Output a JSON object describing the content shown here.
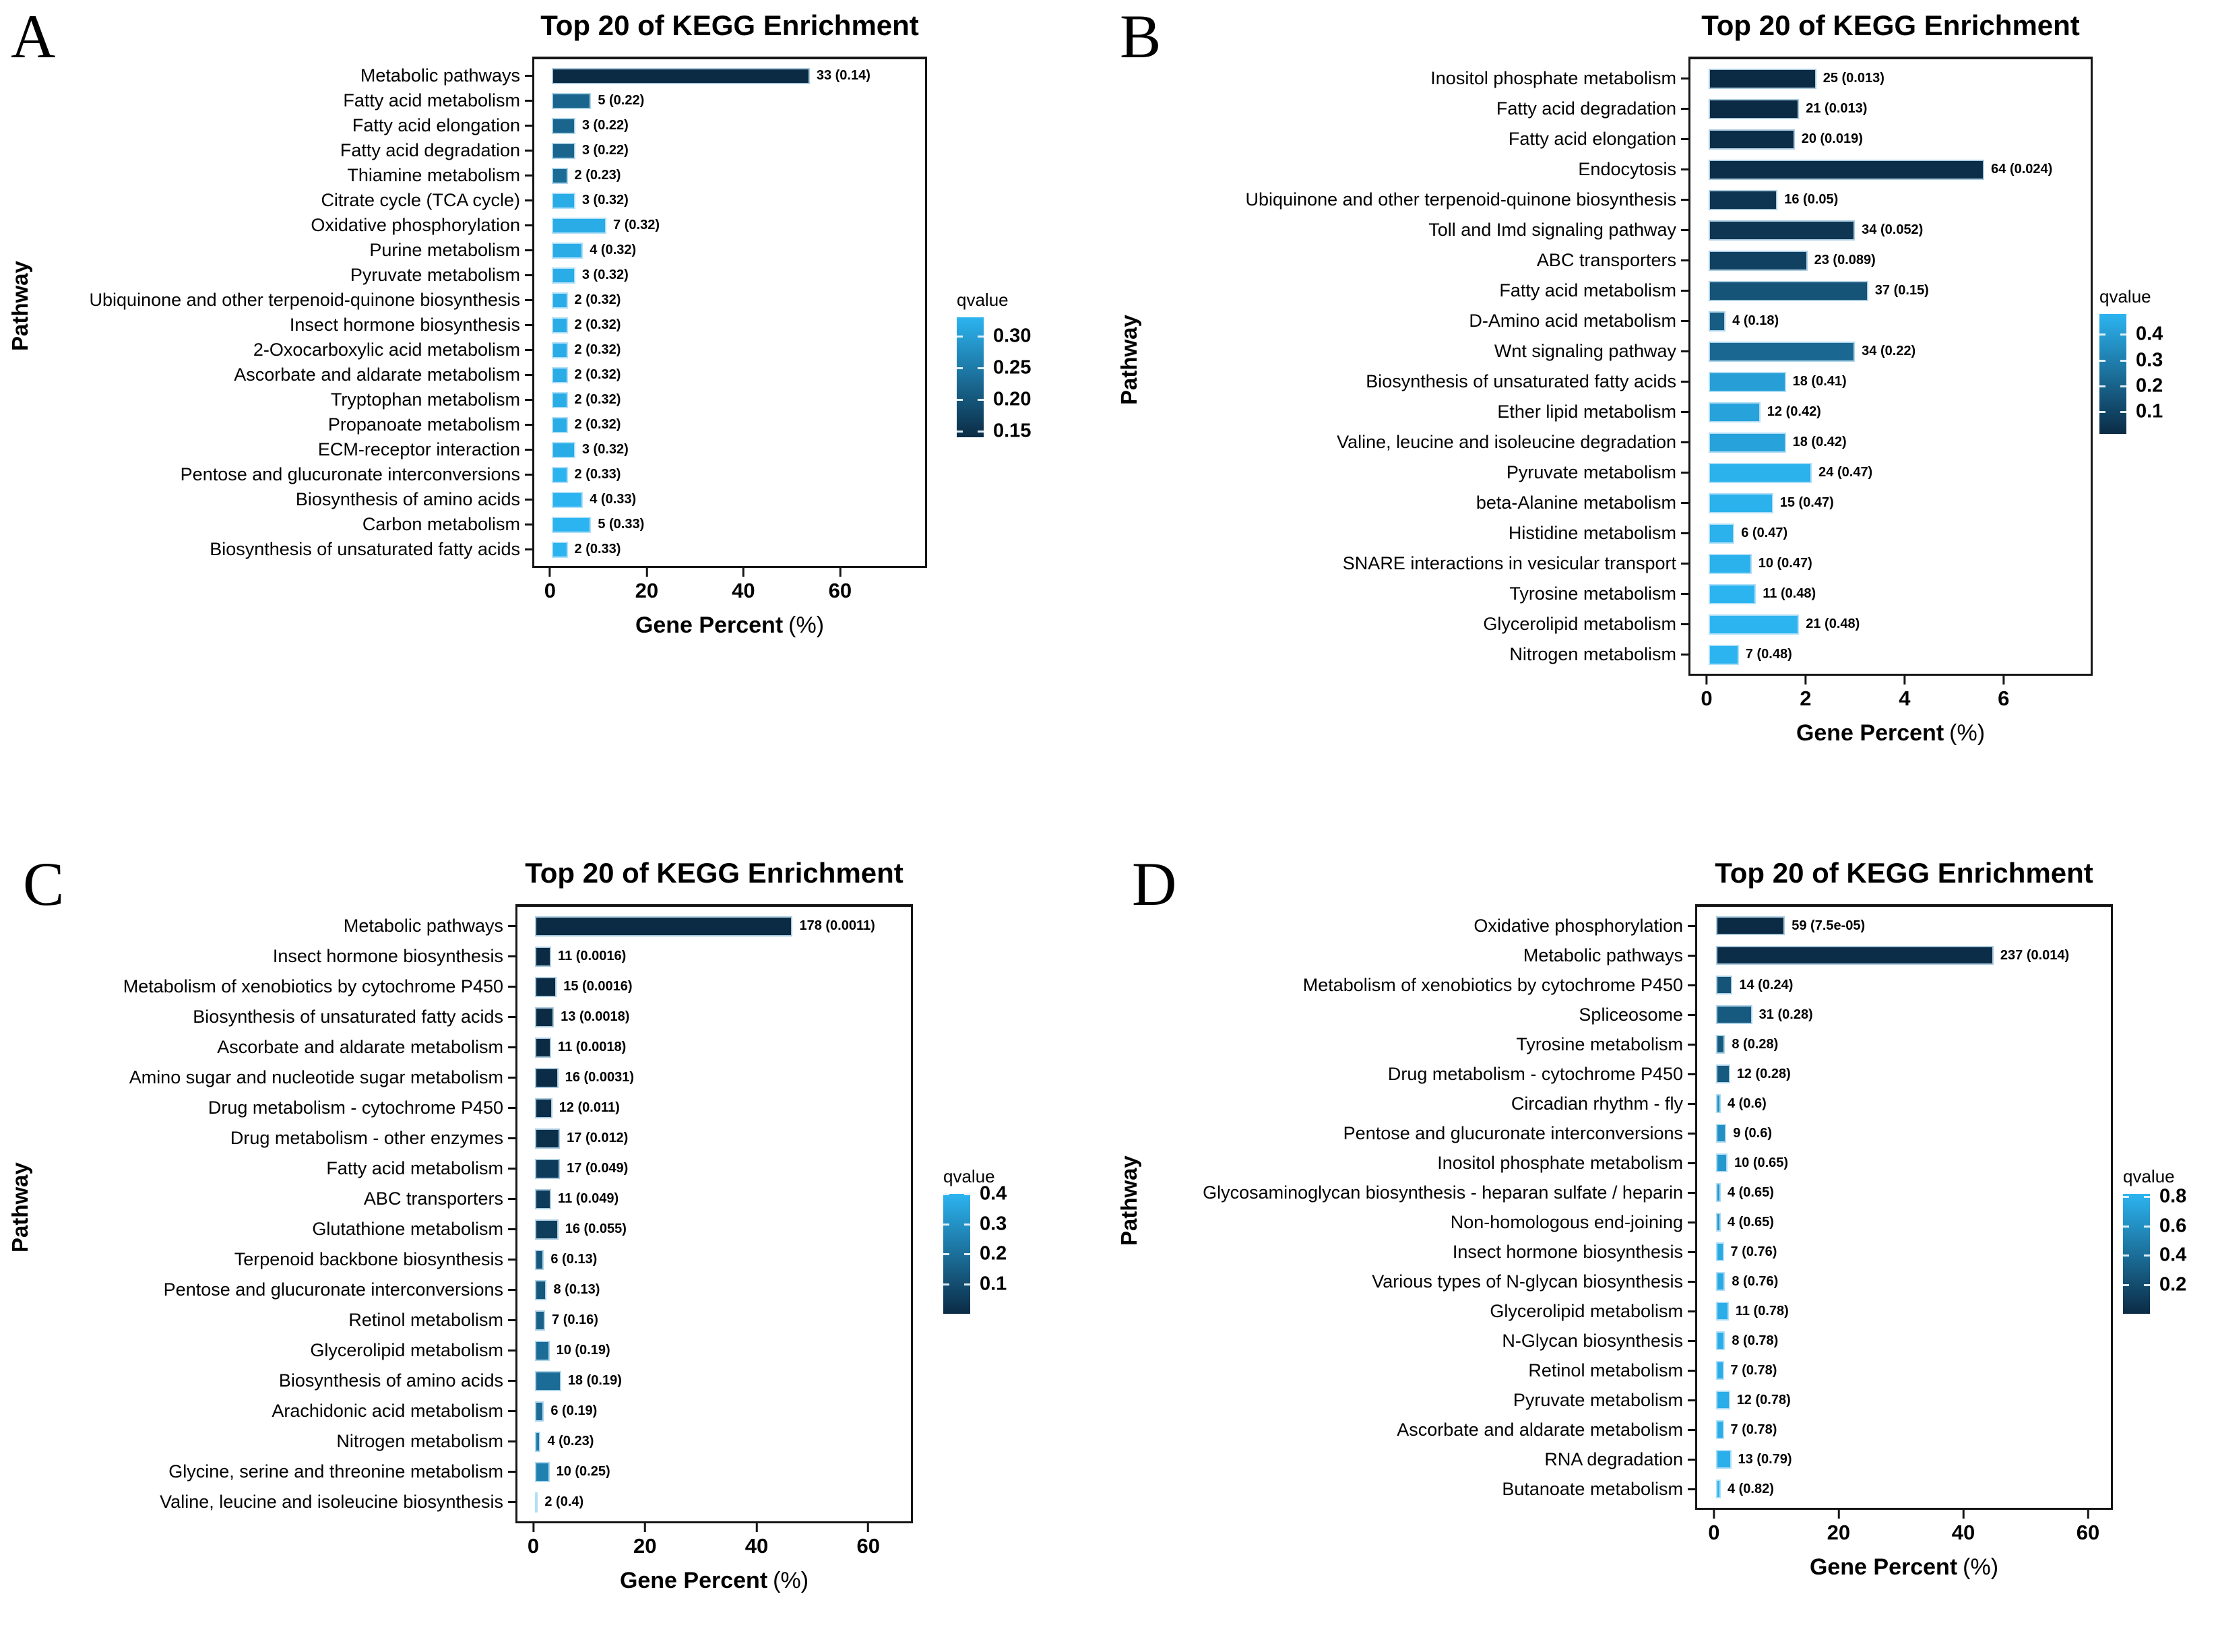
{
  "figure_background": "#ffffff",
  "colors": {
    "qvalue_low": "#0B2B45",
    "qvalue_high": "#2CB4F0",
    "qvalue_low_rgb": [
      11,
      43,
      69
    ],
    "qvalue_high_rgb": [
      44,
      180,
      240
    ],
    "bar_border": "#C8E7FA",
    "axis_line": "#161616"
  },
  "chart_data": [
    {
      "type": "bar",
      "panel": "A",
      "title": "Top 20 of KEGG Enrichment",
      "ylabel": "Pathway",
      "xlabel_main": "Gene Percent",
      "xlabel_unit": "(%)",
      "legend_title": "qvalue",
      "legend_position": "right",
      "grid": false,
      "xticks": [
        0,
        20,
        40,
        60
      ],
      "xmax": 78,
      "qmin": 0.14,
      "qmax": 0.33,
      "legend_ticks": [
        {
          "label": "0.30",
          "value": 0.3
        },
        {
          "label": "0.25",
          "value": 0.25
        },
        {
          "label": "0.20",
          "value": 0.2
        },
        {
          "label": "0.15",
          "value": 0.15
        }
      ],
      "rows": [
        {
          "pathway": "Metabolic pathways",
          "genes": 33,
          "qvalue": 0.14,
          "qtext": "0.14",
          "percent": 53.9
        },
        {
          "pathway": "Fatty acid metabolism",
          "genes": 5,
          "qvalue": 0.22,
          "qtext": "0.22",
          "percent": 8.2
        },
        {
          "pathway": "Fatty acid elongation",
          "genes": 3,
          "qvalue": 0.22,
          "qtext": "0.22",
          "percent": 4.9
        },
        {
          "pathway": "Fatty acid degradation",
          "genes": 3,
          "qvalue": 0.22,
          "qtext": "0.22",
          "percent": 4.9
        },
        {
          "pathway": "Thiamine metabolism",
          "genes": 2,
          "qvalue": 0.23,
          "qtext": "0.23",
          "percent": 3.3
        },
        {
          "pathway": "Citrate cycle (TCA cycle)",
          "genes": 3,
          "qvalue": 0.32,
          "qtext": "0.32",
          "percent": 4.9
        },
        {
          "pathway": "Oxidative phosphorylation",
          "genes": 7,
          "qvalue": 0.32,
          "qtext": "0.32",
          "percent": 11.4
        },
        {
          "pathway": "Purine metabolism",
          "genes": 4,
          "qvalue": 0.32,
          "qtext": "0.32",
          "percent": 6.5
        },
        {
          "pathway": "Pyruvate metabolism",
          "genes": 3,
          "qvalue": 0.32,
          "qtext": "0.32",
          "percent": 4.9
        },
        {
          "pathway": "Ubiquinone and other terpenoid-quinone biosynthesis",
          "genes": 2,
          "qvalue": 0.32,
          "qtext": "0.32",
          "percent": 3.3
        },
        {
          "pathway": "Insect hormone biosynthesis",
          "genes": 2,
          "qvalue": 0.32,
          "qtext": "0.32",
          "percent": 3.3
        },
        {
          "pathway": "2-Oxocarboxylic acid metabolism",
          "genes": 2,
          "qvalue": 0.32,
          "qtext": "0.32",
          "percent": 3.3
        },
        {
          "pathway": "Ascorbate and aldarate metabolism",
          "genes": 2,
          "qvalue": 0.32,
          "qtext": "0.32",
          "percent": 3.3
        },
        {
          "pathway": "Tryptophan metabolism",
          "genes": 2,
          "qvalue": 0.32,
          "qtext": "0.32",
          "percent": 3.3
        },
        {
          "pathway": "Propanoate metabolism",
          "genes": 2,
          "qvalue": 0.32,
          "qtext": "0.32",
          "percent": 3.3
        },
        {
          "pathway": "ECM-receptor interaction",
          "genes": 3,
          "qvalue": 0.32,
          "qtext": "0.32",
          "percent": 4.9
        },
        {
          "pathway": "Pentose and glucuronate interconversions",
          "genes": 2,
          "qvalue": 0.33,
          "qtext": "0.33",
          "percent": 3.3
        },
        {
          "pathway": "Biosynthesis of amino acids",
          "genes": 4,
          "qvalue": 0.33,
          "qtext": "0.33",
          "percent": 6.5
        },
        {
          "pathway": "Carbon metabolism",
          "genes": 5,
          "qvalue": 0.33,
          "qtext": "0.33",
          "percent": 8.2
        },
        {
          "pathway": "Biosynthesis of unsaturated fatty acids",
          "genes": 2,
          "qvalue": 0.33,
          "qtext": "0.33",
          "percent": 3.3
        }
      ]
    },
    {
      "type": "bar",
      "panel": "B",
      "title": "Top 20 of KEGG Enrichment",
      "ylabel": "Pathway",
      "xlabel_main": "Gene Percent",
      "xlabel_unit": "(%)",
      "legend_title": "qvalue",
      "legend_position": "right",
      "grid": false,
      "xticks": [
        0,
        2,
        4,
        6
      ],
      "xmax": 7.8,
      "qmin": 0.013,
      "qmax": 0.48,
      "legend_ticks": [
        {
          "label": "0.4",
          "value": 0.4
        },
        {
          "label": "0.3",
          "value": 0.3
        },
        {
          "label": "0.2",
          "value": 0.2
        },
        {
          "label": "0.1",
          "value": 0.1
        }
      ],
      "rows": [
        {
          "pathway": "Inositol phosphate metabolism",
          "genes": 25,
          "qvalue": 0.013,
          "qtext": "0.013",
          "percent": 2.2
        },
        {
          "pathway": "Fatty acid degradation",
          "genes": 21,
          "qvalue": 0.013,
          "qtext": "0.013",
          "percent": 1.85
        },
        {
          "pathway": "Fatty acid elongation",
          "genes": 20,
          "qvalue": 0.019,
          "qtext": "0.019",
          "percent": 1.76
        },
        {
          "pathway": "Endocytosis",
          "genes": 64,
          "qvalue": 0.024,
          "qtext": "0.024",
          "percent": 5.63
        },
        {
          "pathway": "Ubiquinone and other terpenoid-quinone biosynthesis",
          "genes": 16,
          "qvalue": 0.05,
          "qtext": "0.05",
          "percent": 1.41
        },
        {
          "pathway": "Toll and Imd signaling pathway",
          "genes": 34,
          "qvalue": 0.052,
          "qtext": "0.052",
          "percent": 2.99
        },
        {
          "pathway": "ABC transporters",
          "genes": 23,
          "qvalue": 0.089,
          "qtext": "0.089",
          "percent": 2.02
        },
        {
          "pathway": "Fatty acid metabolism",
          "genes": 37,
          "qvalue": 0.15,
          "qtext": "0.15",
          "percent": 3.26
        },
        {
          "pathway": "D-Amino acid metabolism",
          "genes": 4,
          "qvalue": 0.18,
          "qtext": "0.18",
          "percent": 0.35
        },
        {
          "pathway": "Wnt signaling pathway",
          "genes": 34,
          "qvalue": 0.22,
          "qtext": "0.22",
          "percent": 2.99
        },
        {
          "pathway": "Biosynthesis of unsaturated fatty acids",
          "genes": 18,
          "qvalue": 0.41,
          "qtext": "0.41",
          "percent": 1.58
        },
        {
          "pathway": "Ether lipid metabolism",
          "genes": 12,
          "qvalue": 0.42,
          "qtext": "0.42",
          "percent": 1.06
        },
        {
          "pathway": "Valine, leucine and isoleucine degradation",
          "genes": 18,
          "qvalue": 0.42,
          "qtext": "0.42",
          "percent": 1.58
        },
        {
          "pathway": "Pyruvate metabolism",
          "genes": 24,
          "qvalue": 0.47,
          "qtext": "0.47",
          "percent": 2.11
        },
        {
          "pathway": "beta-Alanine metabolism",
          "genes": 15,
          "qvalue": 0.47,
          "qtext": "0.47",
          "percent": 1.32
        },
        {
          "pathway": "Histidine metabolism",
          "genes": 6,
          "qvalue": 0.47,
          "qtext": "0.47",
          "percent": 0.53
        },
        {
          "pathway": "SNARE interactions in vesicular transport",
          "genes": 10,
          "qvalue": 0.47,
          "qtext": "0.47",
          "percent": 0.88
        },
        {
          "pathway": "Tyrosine metabolism",
          "genes": 11,
          "qvalue": 0.48,
          "qtext": "0.48",
          "percent": 0.97
        },
        {
          "pathway": "Glycerolipid metabolism",
          "genes": 21,
          "qvalue": 0.48,
          "qtext": "0.48",
          "percent": 1.85
        },
        {
          "pathway": "Nitrogen metabolism",
          "genes": 7,
          "qvalue": 0.48,
          "qtext": "0.48",
          "percent": 0.62
        }
      ]
    },
    {
      "type": "bar",
      "panel": "C",
      "title": "Top 20 of KEGG Enrichment",
      "ylabel": "Pathway",
      "xlabel_main": "Gene Percent",
      "xlabel_unit": "(%)",
      "legend_title": "qvalue",
      "legend_position": "right",
      "grid": false,
      "xticks": [
        0,
        20,
        40,
        60
      ],
      "xmax": 68,
      "qmin": 0.0011,
      "qmax": 0.4,
      "legend_ticks": [
        {
          "label": "0.4",
          "value": 0.4
        },
        {
          "label": "0.3",
          "value": 0.3
        },
        {
          "label": "0.2",
          "value": 0.2
        },
        {
          "label": "0.1",
          "value": 0.1
        }
      ],
      "rows": [
        {
          "pathway": "Metabolic pathways",
          "genes": 178,
          "qvalue": 0.0011,
          "qtext": "0.0011",
          "percent": 46.6
        },
        {
          "pathway": "Insect hormone biosynthesis",
          "genes": 11,
          "qvalue": 0.0016,
          "qtext": "0.0016",
          "percent": 2.9
        },
        {
          "pathway": "Metabolism of xenobiotics by cytochrome P450",
          "genes": 15,
          "qvalue": 0.0016,
          "qtext": "0.0016",
          "percent": 3.9
        },
        {
          "pathway": "Biosynthesis of unsaturated fatty acids",
          "genes": 13,
          "qvalue": 0.0018,
          "qtext": "0.0018",
          "percent": 3.4
        },
        {
          "pathway": "Ascorbate and aldarate metabolism",
          "genes": 11,
          "qvalue": 0.0018,
          "qtext": "0.0018",
          "percent": 2.9
        },
        {
          "pathway": "Amino sugar and nucleotide sugar metabolism",
          "genes": 16,
          "qvalue": 0.0031,
          "qtext": "0.0031",
          "percent": 4.2
        },
        {
          "pathway": "Drug metabolism - cytochrome P450",
          "genes": 12,
          "qvalue": 0.011,
          "qtext": "0.011",
          "percent": 3.1
        },
        {
          "pathway": "Drug metabolism - other enzymes",
          "genes": 17,
          "qvalue": 0.012,
          "qtext": "0.012",
          "percent": 4.5
        },
        {
          "pathway": "Fatty acid metabolism",
          "genes": 17,
          "qvalue": 0.049,
          "qtext": "0.049",
          "percent": 4.5
        },
        {
          "pathway": "ABC transporters",
          "genes": 11,
          "qvalue": 0.049,
          "qtext": "0.049",
          "percent": 2.9
        },
        {
          "pathway": "Glutathione metabolism",
          "genes": 16,
          "qvalue": 0.055,
          "qtext": "0.055",
          "percent": 4.2
        },
        {
          "pathway": "Terpenoid backbone biosynthesis",
          "genes": 6,
          "qvalue": 0.13,
          "qtext": "0.13",
          "percent": 1.6
        },
        {
          "pathway": "Pentose and glucuronate interconversions",
          "genes": 8,
          "qvalue": 0.13,
          "qtext": "0.13",
          "percent": 2.1
        },
        {
          "pathway": "Retinol metabolism",
          "genes": 7,
          "qvalue": 0.16,
          "qtext": "0.16",
          "percent": 1.8
        },
        {
          "pathway": "Glycerolipid metabolism",
          "genes": 10,
          "qvalue": 0.19,
          "qtext": "0.19",
          "percent": 2.6
        },
        {
          "pathway": "Biosynthesis of amino acids",
          "genes": 18,
          "qvalue": 0.19,
          "qtext": "0.19",
          "percent": 4.7
        },
        {
          "pathway": "Arachidonic acid metabolism",
          "genes": 6,
          "qvalue": 0.19,
          "qtext": "0.19",
          "percent": 1.6
        },
        {
          "pathway": "Nitrogen metabolism",
          "genes": 4,
          "qvalue": 0.23,
          "qtext": "0.23",
          "percent": 1.0
        },
        {
          "pathway": "Glycine, serine and threonine metabolism",
          "genes": 10,
          "qvalue": 0.25,
          "qtext": "0.25",
          "percent": 2.6
        },
        {
          "pathway": "Valine, leucine and isoleucine biosynthesis",
          "genes": 2,
          "qvalue": 0.4,
          "qtext": "0.4",
          "percent": 0.5
        }
      ]
    },
    {
      "type": "bar",
      "panel": "D",
      "title": "Top 20 of KEGG Enrichment",
      "ylabel": "Pathway",
      "xlabel_main": "Gene Percent",
      "xlabel_unit": "(%)",
      "legend_title": "qvalue",
      "legend_position": "right",
      "grid": false,
      "xticks": [
        0,
        20,
        40,
        60
      ],
      "xmax": 64,
      "qmin": 7.5e-05,
      "qmax": 0.82,
      "legend_ticks": [
        {
          "label": "0.8",
          "value": 0.8
        },
        {
          "label": "0.6",
          "value": 0.6
        },
        {
          "label": "0.4",
          "value": 0.4
        },
        {
          "label": "0.2",
          "value": 0.2
        }
      ],
      "rows": [
        {
          "pathway": "Oxidative phosphorylation",
          "genes": 59,
          "qvalue": 7.5e-05,
          "qtext": "7.5e-05",
          "percent": 11.2
        },
        {
          "pathway": "Metabolic pathways",
          "genes": 237,
          "qvalue": 0.014,
          "qtext": "0.014",
          "percent": 45.0
        },
        {
          "pathway": "Metabolism of xenobiotics by cytochrome P450",
          "genes": 14,
          "qvalue": 0.24,
          "qtext": "0.24",
          "percent": 2.7
        },
        {
          "pathway": "Spliceosome",
          "genes": 31,
          "qvalue": 0.28,
          "qtext": "0.28",
          "percent": 5.9
        },
        {
          "pathway": "Tyrosine metabolism",
          "genes": 8,
          "qvalue": 0.28,
          "qtext": "0.28",
          "percent": 1.5
        },
        {
          "pathway": "Drug metabolism - cytochrome P450",
          "genes": 12,
          "qvalue": 0.28,
          "qtext": "0.28",
          "percent": 2.3
        },
        {
          "pathway": "Circadian rhythm - fly",
          "genes": 4,
          "qvalue": 0.6,
          "qtext": "0.6",
          "percent": 0.8
        },
        {
          "pathway": "Pentose and glucuronate interconversions",
          "genes": 9,
          "qvalue": 0.6,
          "qtext": "0.6",
          "percent": 1.7
        },
        {
          "pathway": "Inositol phosphate metabolism",
          "genes": 10,
          "qvalue": 0.65,
          "qtext": "0.65",
          "percent": 1.9
        },
        {
          "pathway": "Glycosaminoglycan biosynthesis - heparan sulfate / heparin",
          "genes": 4,
          "qvalue": 0.65,
          "qtext": "0.65",
          "percent": 0.8
        },
        {
          "pathway": "Non-homologous end-joining",
          "genes": 4,
          "qvalue": 0.65,
          "qtext": "0.65",
          "percent": 0.8
        },
        {
          "pathway": "Insect hormone biosynthesis",
          "genes": 7,
          "qvalue": 0.76,
          "qtext": "0.76",
          "percent": 1.3
        },
        {
          "pathway": "Various types of N-glycan biosynthesis",
          "genes": 8,
          "qvalue": 0.76,
          "qtext": "0.76",
          "percent": 1.5
        },
        {
          "pathway": "Glycerolipid metabolism",
          "genes": 11,
          "qvalue": 0.78,
          "qtext": "0.78",
          "percent": 2.1
        },
        {
          "pathway": "N-Glycan biosynthesis",
          "genes": 8,
          "qvalue": 0.78,
          "qtext": "0.78",
          "percent": 1.5
        },
        {
          "pathway": "Retinol metabolism",
          "genes": 7,
          "qvalue": 0.78,
          "qtext": "0.78",
          "percent": 1.3
        },
        {
          "pathway": "Pyruvate metabolism",
          "genes": 12,
          "qvalue": 0.78,
          "qtext": "0.78",
          "percent": 2.3
        },
        {
          "pathway": "Ascorbate and aldarate metabolism",
          "genes": 7,
          "qvalue": 0.78,
          "qtext": "0.78",
          "percent": 1.3
        },
        {
          "pathway": "RNA degradation",
          "genes": 13,
          "qvalue": 0.79,
          "qtext": "0.79",
          "percent": 2.5
        },
        {
          "pathway": "Butanoate metabolism",
          "genes": 4,
          "qvalue": 0.82,
          "qtext": "0.82",
          "percent": 0.8
        }
      ]
    }
  ]
}
